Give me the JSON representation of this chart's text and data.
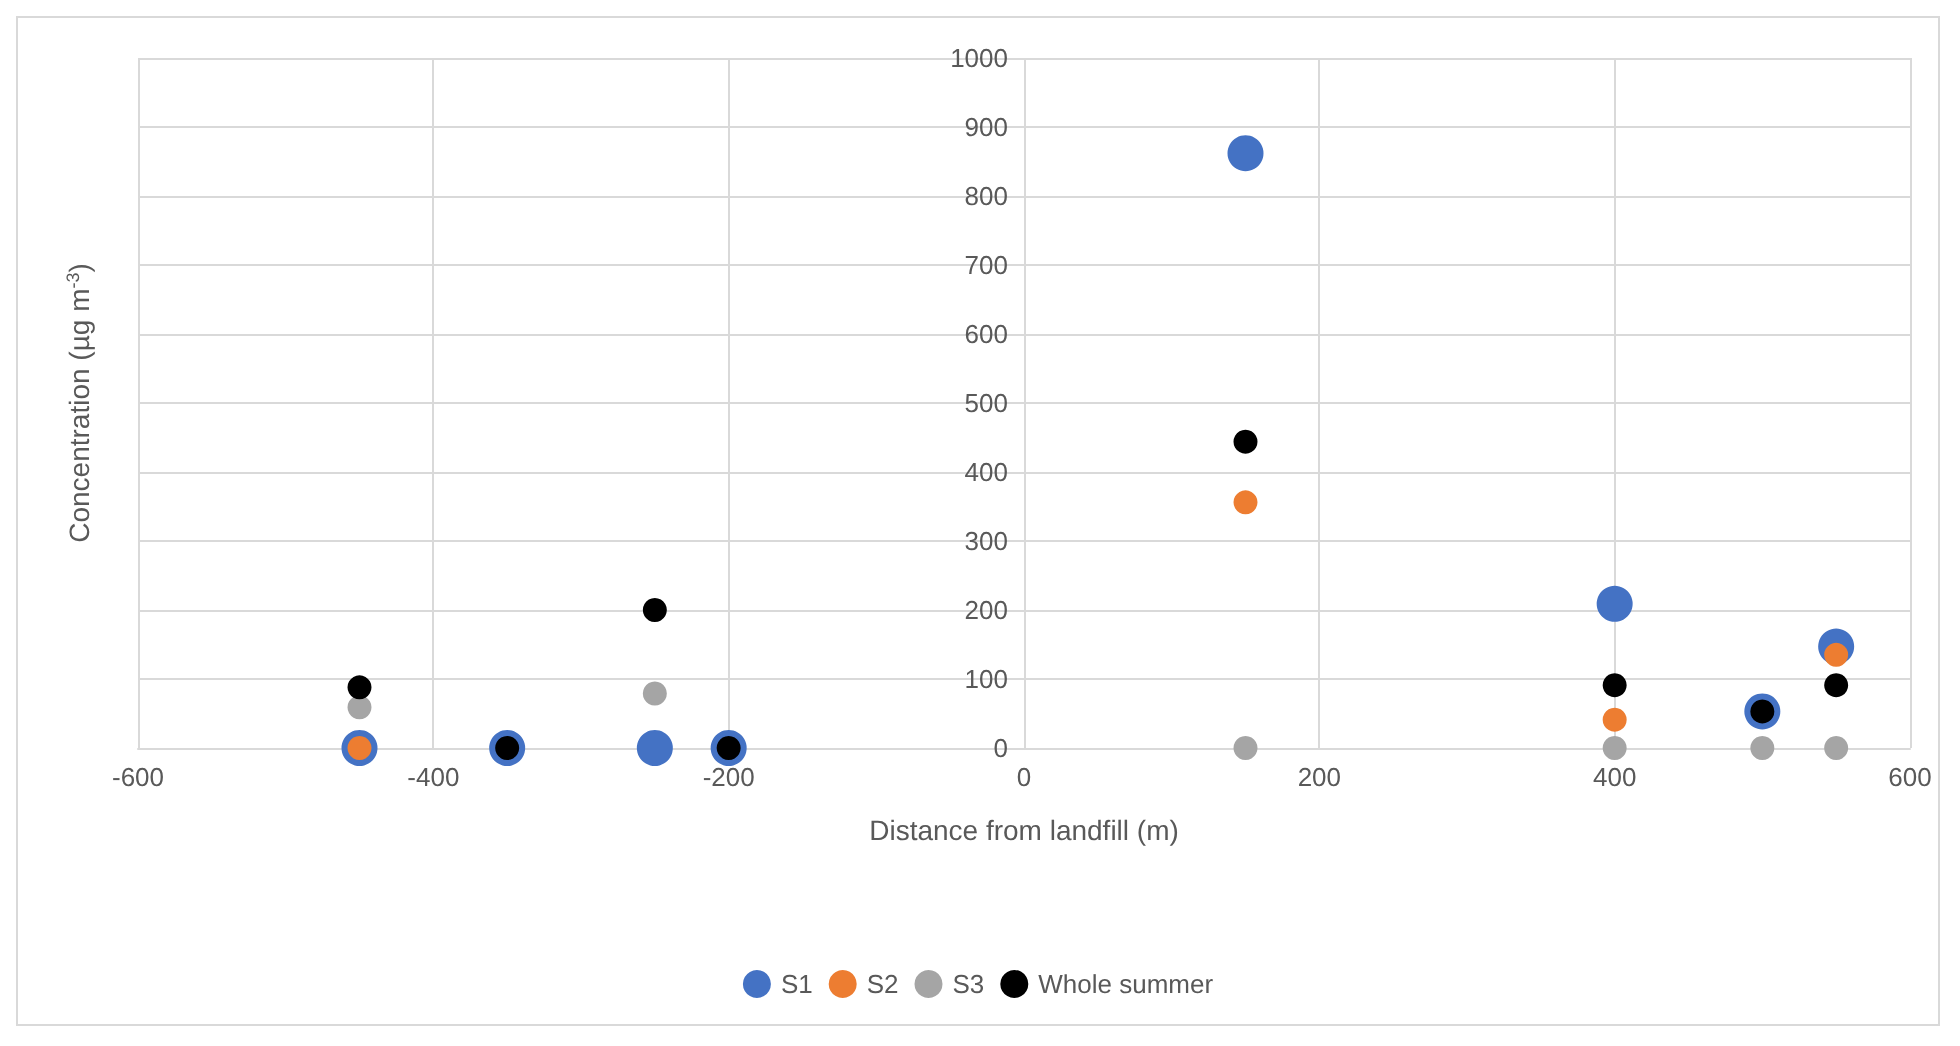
{
  "chart_data": {
    "type": "scatter",
    "xlabel": "Distance from landfill (m)",
    "ylabel": "Concentration (µg m$^{-3}$)",
    "series": [
      {
        "name": "S1",
        "color": "#4472c4",
        "x": [
          -450,
          -350,
          -250,
          -200,
          150,
          400,
          500,
          550
        ],
        "values": [
          0,
          0,
          0,
          0,
          862,
          209,
          53,
          147
        ]
      },
      {
        "name": "S2",
        "color": "#ed7d31",
        "x": [
          -450,
          150,
          400,
          500,
          550
        ],
        "values": [
          0,
          356,
          41,
          null,
          135
        ]
      },
      {
        "name": "S3",
        "color": "#a5a5a5",
        "x": [
          -450,
          -250,
          150,
          400,
          500,
          550
        ],
        "values": [
          59,
          79,
          0,
          0,
          0,
          0
        ]
      },
      {
        "name": "Whole summer",
        "color": "#000000",
        "x": [
          -450,
          -350,
          -250,
          -200,
          150,
          400,
          500,
          550
        ],
        "values": [
          88,
          0,
          200,
          0,
          444,
          91,
          53,
          91
        ]
      }
    ],
    "xlim": [
      -600,
      600
    ],
    "xticks": [
      -600,
      -400,
      -200,
      0,
      200,
      400,
      600
    ],
    "ylim": [
      0,
      1000
    ],
    "yticks": [
      0,
      100,
      200,
      300,
      400,
      500,
      600,
      700,
      800,
      900,
      1000
    ],
    "grid": true,
    "legend": "bottom",
    "marker": "circle"
  }
}
